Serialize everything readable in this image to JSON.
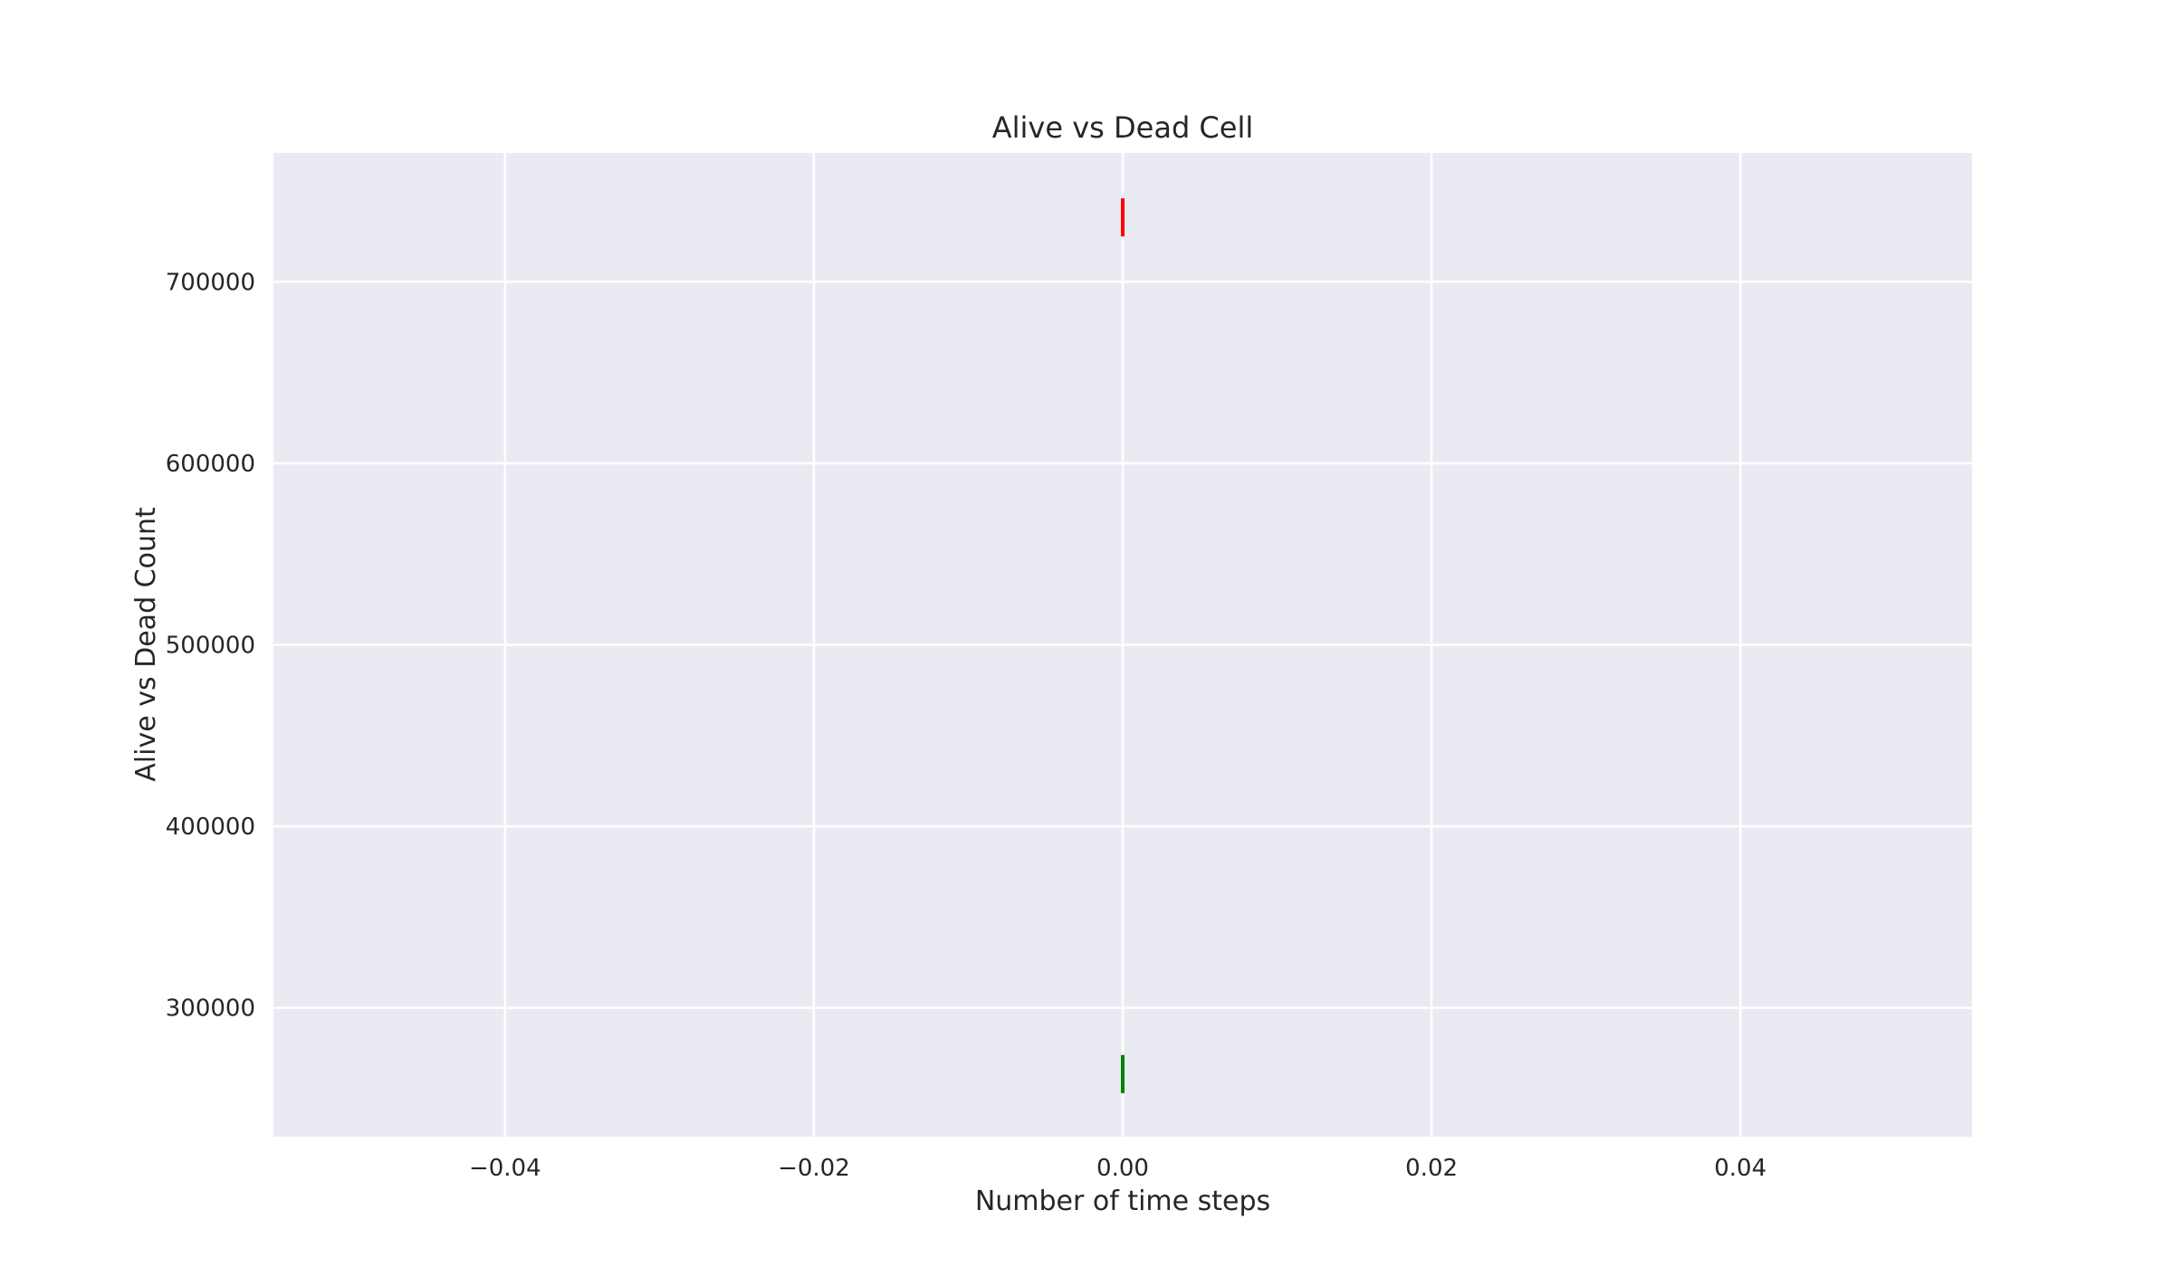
{
  "chart_data": {
    "type": "line",
    "title": "Alive vs Dead Cell",
    "xlabel": "Number of time steps",
    "ylabel": "Alive vs Dead Count",
    "xlim": [
      -0.055,
      0.055
    ],
    "ylim": [
      229000,
      771000
    ],
    "grid": true,
    "background_color": "#eaeaf2",
    "grid_color": "#ffffff",
    "x_ticks": [
      {
        "value": -0.04,
        "label": "−0.04"
      },
      {
        "value": -0.02,
        "label": "−0.02"
      },
      {
        "value": 0.0,
        "label": "0.00"
      },
      {
        "value": 0.02,
        "label": "0.02"
      },
      {
        "value": 0.04,
        "label": "0.04"
      }
    ],
    "y_ticks": [
      {
        "value": 300000,
        "label": "300000"
      },
      {
        "value": 400000,
        "label": "400000"
      },
      {
        "value": 500000,
        "label": "500000"
      },
      {
        "value": 600000,
        "label": "600000"
      },
      {
        "value": 700000,
        "label": "700000"
      }
    ],
    "series": [
      {
        "color": "#ff0000",
        "x": [
          0,
          0
        ],
        "y": [
          725000,
          746000
        ]
      },
      {
        "color": "#008000",
        "x": [
          0,
          0
        ],
        "y": [
          253000,
          274000
        ]
      }
    ]
  }
}
